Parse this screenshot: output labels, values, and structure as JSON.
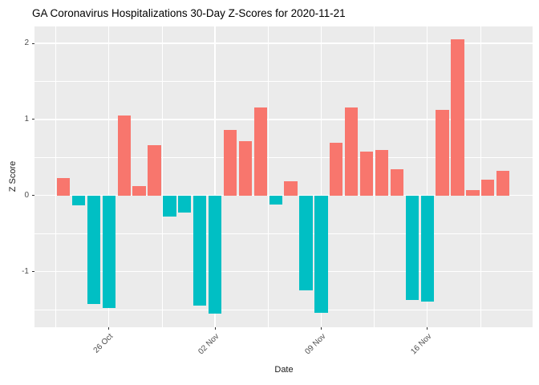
{
  "chart_data": {
    "type": "bar",
    "title": "GA Coronavirus Hospitalizations 30-Day Z-Scores for 2020-11-21",
    "xlabel": "Date",
    "ylabel": "Z Score",
    "categories": [
      "2020-10-23",
      "2020-10-24",
      "2020-10-25",
      "2020-10-26",
      "2020-10-27",
      "2020-10-28",
      "2020-10-29",
      "2020-10-30",
      "2020-10-31",
      "2020-11-01",
      "2020-11-02",
      "2020-11-03",
      "2020-11-04",
      "2020-11-05",
      "2020-11-06",
      "2020-11-07",
      "2020-11-08",
      "2020-11-09",
      "2020-11-10",
      "2020-11-11",
      "2020-11-12",
      "2020-11-13",
      "2020-11-14",
      "2020-11-15",
      "2020-11-16",
      "2020-11-17",
      "2020-11-18",
      "2020-11-19",
      "2020-11-20",
      "2020-11-21"
    ],
    "values": [
      0.23,
      -0.13,
      -1.43,
      -1.48,
      1.05,
      0.12,
      0.66,
      -0.28,
      -0.22,
      -1.45,
      -1.55,
      0.86,
      0.71,
      1.16,
      -0.12,
      0.19,
      -1.25,
      -1.54,
      0.69,
      1.16,
      0.58,
      0.6,
      0.35,
      -1.37,
      -1.4,
      1.13,
      2.05,
      0.07,
      0.21,
      0.32
    ],
    "ylim": [
      -1.733,
      2.223
    ],
    "y_ticks": [
      2,
      1,
      0,
      -1
    ],
    "y_minor": [
      1.5,
      0.5,
      -0.5,
      -1.5
    ],
    "x_ticks": [
      {
        "label": "26 Oct",
        "day": 3
      },
      {
        "label": "02 Nov",
        "day": 10
      },
      {
        "label": "09 Nov",
        "day": 17
      },
      {
        "label": "16 Nov",
        "day": 24
      }
    ],
    "x_minor_days": [
      -0.5,
      6.5,
      13.5,
      20.5,
      27.5,
      31
    ],
    "grid": "on",
    "legend_position": "none",
    "colors": {
      "positive_bar": "#F8766D",
      "negative_bar": "#00BFC4",
      "panel_background": "#EBEBEB",
      "gridline": "#FFFFFF",
      "tick_text": "#4D4D4D",
      "tick_mark": "#333333",
      "title_text": "#000000"
    }
  }
}
